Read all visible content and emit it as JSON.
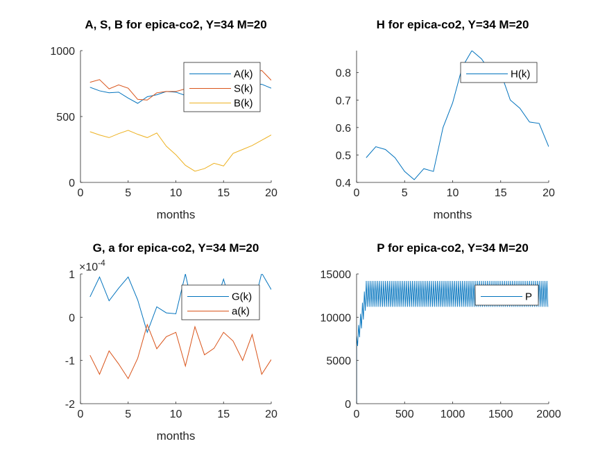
{
  "colors": {
    "series1": "#0072BD",
    "series2": "#D95319",
    "series3": "#EDB120",
    "axis": "#262626",
    "title": "#000000"
  },
  "chart_data": [
    {
      "type": "line",
      "title": "A, S, B for epica-co2, Y=34 M=20",
      "xlabel": "months",
      "ylabel": "",
      "xlim": [
        0,
        20
      ],
      "ylim": [
        0,
        1000
      ],
      "xticks": [
        0,
        5,
        10,
        15,
        20
      ],
      "yticks": [
        0,
        500,
        1000
      ],
      "xtick_labels": [
        "0",
        "5",
        "10",
        "15",
        "20"
      ],
      "ytick_labels": [
        "0",
        "500",
        "1000"
      ],
      "exponent_label": "",
      "legend_position": "top-right",
      "x": [
        1,
        2,
        3,
        4,
        5,
        6,
        7,
        8,
        9,
        10,
        11,
        12,
        13,
        14,
        15,
        16,
        17,
        18,
        19,
        20
      ],
      "series": [
        {
          "name": "A(k)",
          "color": "#0072BD",
          "values": [
            722,
            695,
            680,
            685,
            640,
            600,
            650,
            665,
            690,
            685,
            660,
            665,
            680,
            690,
            700,
            700,
            715,
            740,
            745,
            715
          ]
        },
        {
          "name": "S(k)",
          "color": "#D95319",
          "values": [
            760,
            780,
            710,
            740,
            715,
            630,
            625,
            680,
            690,
            690,
            710,
            720,
            740,
            750,
            790,
            790,
            800,
            830,
            850,
            775
          ]
        },
        {
          "name": "B(k)",
          "color": "#EDB120",
          "values": [
            385,
            360,
            340,
            370,
            395,
            365,
            340,
            375,
            275,
            210,
            130,
            85,
            105,
            145,
            125,
            220,
            250,
            280,
            320,
            360
          ]
        }
      ]
    },
    {
      "type": "line",
      "title": "H for epica-co2, Y=34 M=20",
      "xlabel": "months",
      "ylabel": "",
      "xlim": [
        0,
        20
      ],
      "ylim": [
        0.4,
        0.88
      ],
      "xticks": [
        0,
        5,
        10,
        15,
        20
      ],
      "yticks": [
        0.4,
        0.5,
        0.6,
        0.7,
        0.8
      ],
      "xtick_labels": [
        "0",
        "5",
        "10",
        "15",
        "20"
      ],
      "ytick_labels": [
        "0.4",
        "0.5",
        "0.6",
        "0.7",
        "0.8"
      ],
      "exponent_label": "",
      "legend_position": "top-right",
      "x": [
        1,
        2,
        3,
        4,
        5,
        6,
        7,
        8,
        9,
        10,
        11,
        12,
        13,
        14,
        15,
        16,
        17,
        18,
        19,
        20
      ],
      "series": [
        {
          "name": "H(k)",
          "color": "#0072BD",
          "values": [
            0.49,
            0.53,
            0.52,
            0.49,
            0.44,
            0.41,
            0.45,
            0.44,
            0.6,
            0.69,
            0.82,
            0.88,
            0.85,
            0.8,
            0.8,
            0.7,
            0.67,
            0.62,
            0.615,
            0.53
          ]
        }
      ]
    },
    {
      "type": "line",
      "title": "G, a for epica-co2, Y=34 M=20",
      "xlabel": "months",
      "ylabel": "",
      "xlim": [
        0,
        20
      ],
      "ylim": [
        -2,
        1
      ],
      "xticks": [
        0,
        5,
        10,
        15,
        20
      ],
      "yticks": [
        -2,
        -1,
        0,
        1
      ],
      "xtick_labels": [
        "0",
        "5",
        "10",
        "15",
        "20"
      ],
      "ytick_labels": [
        "-2",
        "-1",
        "0",
        "1"
      ],
      "exponent_label": "×10",
      "exponent_power": "-4",
      "legend_position": "top-right",
      "x": [
        1,
        2,
        3,
        4,
        5,
        6,
        7,
        8,
        9,
        10,
        11,
        12,
        13,
        14,
        15,
        16,
        17,
        18,
        19,
        20
      ],
      "series": [
        {
          "name": "G(k)",
          "color": "#0072BD",
          "values": [
            0.47,
            0.93,
            0.38,
            0.67,
            0.93,
            0.4,
            -0.35,
            0.24,
            0.1,
            0.08,
            1.0,
            0.0,
            0.5,
            0.2,
            0.88,
            0.1,
            0.22,
            0.12,
            1.02,
            0.64
          ]
        },
        {
          "name": "a(k)",
          "color": "#D95319",
          "values": [
            -0.88,
            -1.32,
            -0.78,
            -1.08,
            -1.42,
            -0.95,
            -0.17,
            -0.73,
            -0.45,
            -0.35,
            -1.13,
            -0.22,
            -0.87,
            -0.72,
            -0.35,
            -0.55,
            -1.0,
            -0.4,
            -1.32,
            -0.98
          ]
        }
      ]
    },
    {
      "type": "line",
      "title": "P for epica-co2, Y=34 M=20",
      "xlabel": "",
      "ylabel": "",
      "xlim": [
        0,
        2000
      ],
      "ylim": [
        0,
        15000
      ],
      "xticks": [
        0,
        500,
        1000,
        1500,
        2000
      ],
      "yticks": [
        0,
        5000,
        10000,
        15000
      ],
      "xtick_labels": [
        "0",
        "500",
        "1000",
        "1500",
        "2000"
      ],
      "ytick_labels": [
        "0",
        "5000",
        "10000",
        "15000"
      ],
      "exponent_label": "",
      "legend_position": "top-right",
      "oscillation": {
        "start_x": 1,
        "rise_end_x": 100,
        "min": 11200,
        "max": 14200,
        "period": 20
      },
      "series": [
        {
          "name": "P",
          "color": "#0072BD"
        }
      ]
    }
  ]
}
